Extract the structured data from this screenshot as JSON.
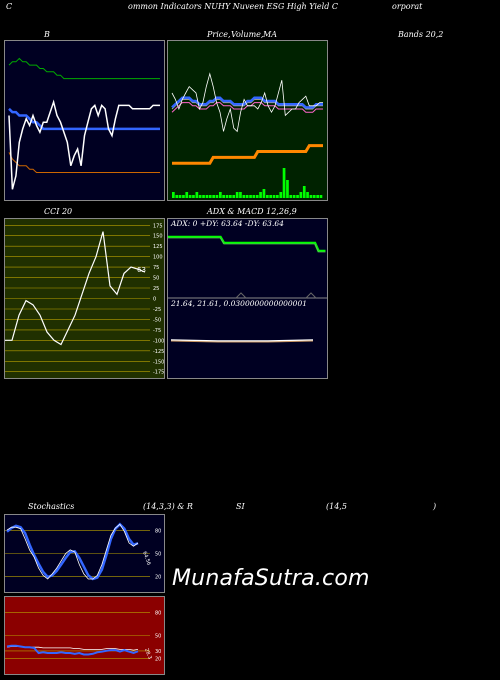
{
  "header": {
    "title_left": "C",
    "title_mid": "ommon Indicators NUHY Nuveen ESG High Yield C",
    "title_right": "orporat"
  },
  "labels": {
    "bollinger_left": "B",
    "bollinger_mid": "Price,",
    "bollinger_volume": "Volume,",
    "bollinger_mid2": "MA",
    "bollinger_right": "Bands 20,2",
    "cci": "CCI 20",
    "adx_title": "ADX  & MACD 12,26,9",
    "adx_values": "ADX: 0  +DY: 63.64  -DY: 63.64",
    "macd_values": "21.64,  21.61,  0.0300000000000001",
    "stoch": "Stochastics",
    "stoch_params": "(14,3,3) & R",
    "rsi": "SI",
    "rsi_params": "(14,5",
    "rsi_close": ")",
    "cci_last": "63",
    "stoch_last": "64.56",
    "rsi_last": "28.3"
  },
  "brand": "MunafaSutra.com",
  "colors": {
    "panel_dark": "#000022",
    "panel_green": "#002200",
    "panel_olive": "#203000",
    "panel_red": "#8b0000",
    "price": "#ffffff",
    "upper_band": "#00aa00",
    "lower_band": "#cc6600",
    "mid_band": "#3366ff",
    "volume": "#00ff00",
    "ema": "#ff8800"
  },
  "chart_data": [
    {
      "type": "line",
      "id": "bollinger",
      "x": [
        1,
        2,
        3,
        4,
        5,
        6,
        7,
        8,
        9,
        10,
        11,
        12,
        13,
        14,
        15,
        16,
        17,
        18,
        19,
        20,
        21,
        22,
        23,
        24,
        25,
        26,
        27,
        28,
        29,
        30,
        31,
        32,
        33,
        34,
        35,
        36,
        37,
        38,
        39,
        40,
        41,
        42,
        43,
        44,
        45,
        46,
        47,
        48,
        49,
        50,
        51,
        52,
        53,
        54,
        55,
        56,
        57,
        58,
        59,
        60,
        61,
        62,
        63,
        64,
        65,
        66,
        67,
        68,
        69,
        70,
        71,
        72,
        73,
        74,
        75,
        76,
        77,
        78,
        79,
        80
      ],
      "series": [
        {
          "values": [
            20.25,
            20.26,
            20.26,
            20.27,
            20.26,
            20.26,
            20.25,
            20.25,
            20.25,
            20.24,
            20.24,
            20.23,
            20.23,
            20.23,
            20.22,
            20.22,
            20.21,
            20.21,
            20.21,
            20.21,
            20.21,
            20.21,
            20.21,
            20.21,
            20.21,
            20.21,
            20.21,
            20.21,
            20.21,
            20.21,
            20.21,
            20.21,
            20.21,
            20.21,
            20.21,
            20.21,
            20.21,
            20.21,
            20.21,
            20.21,
            20.21,
            20.21,
            20.21,
            20.21,
            20.21,
            20.21,
            20.21,
            20.21,
            20.21,
            20.21,
            20.21,
            20.21,
            20.21,
            20.21,
            20.2,
            20.2,
            20.19,
            20.19,
            20.18,
            20.18,
            20.18,
            20.18,
            20.17,
            20.17,
            20.17,
            20.17,
            20.17,
            20.17,
            20.17,
            20.17,
            20.17,
            20.17,
            20.17,
            20.17,
            20.17,
            20.17,
            20.18,
            20.18,
            20.19,
            20.19
          ]
        },
        {
          "values": [
            20.12,
            20.11,
            20.11,
            20.1,
            20.1,
            20.1,
            20.09,
            20.08,
            20.08,
            20.07,
            20.06,
            20.06,
            20.06,
            20.06,
            20.06,
            20.06,
            20.06,
            20.06,
            20.06,
            20.06,
            20.06,
            20.06,
            20.06,
            20.06,
            20.06,
            20.06,
            20.06,
            20.06,
            20.06,
            20.06,
            20.06,
            20.06,
            20.06,
            20.06,
            20.06,
            20.06,
            20.06,
            20.06,
            20.06,
            20.06,
            20.06,
            20.06,
            20.06,
            20.06,
            20.06,
            20.06,
            20.06,
            20.06,
            20.06,
            20.06,
            20.06,
            20.06,
            20.06,
            20.06,
            20.06,
            20.06,
            20.06,
            20.06,
            20.06,
            20.06,
            20.06,
            20.06,
            20.06,
            20.06,
            20.06,
            20.06,
            20.06,
            20.06,
            20.06,
            20.06,
            20.06,
            20.06,
            20.06,
            20.06,
            20.06,
            20.06,
            20.05,
            20.05,
            20.04,
            20.04
          ]
        },
        {
          "values": [
            19.99,
            19.97,
            19.96,
            19.95,
            19.95,
            19.95,
            19.94,
            19.94,
            19.93,
            19.93,
            19.93,
            19.93,
            19.93,
            19.93,
            19.93,
            19.93,
            19.93,
            19.93,
            19.93,
            19.93,
            19.93,
            19.93,
            19.93,
            19.93,
            19.93,
            19.93,
            19.93,
            19.93,
            19.93,
            19.93,
            19.93,
            19.93,
            19.93,
            19.93,
            19.93,
            19.93,
            19.93,
            19.93,
            19.93,
            19.93,
            19.93,
            19.93,
            19.93,
            19.93,
            19.93,
            19.93,
            19.93,
            19.93,
            19.93,
            19.93,
            19.93,
            19.93,
            19.93,
            19.93,
            19.93,
            19.93,
            19.93,
            19.93,
            19.93,
            19.93,
            19.93,
            19.93,
            19.93,
            19.93,
            19.93,
            19.93,
            19.93,
            19.93,
            19.93,
            19.93,
            19.93,
            19.93,
            19.93,
            19.93,
            19.93,
            19.93,
            19.93,
            19.93,
            19.93,
            19.93
          ]
        },
        {
          "values": [
            20.1,
            19.88,
            19.92,
            20.02,
            20.06,
            20.09,
            20.07,
            20.1,
            20.07,
            20.05,
            20.08,
            20.08,
            20.11,
            20.14,
            20.1,
            20.08,
            20.05,
            20.02,
            19.95,
            19.98,
            20.0,
            19.95,
            20.04,
            20.08,
            20.12,
            20.13,
            20.1,
            20.13,
            20.12,
            20.06,
            20.04,
            20.09,
            20.13,
            20.13,
            20.13,
            20.13,
            20.12,
            20.12,
            20.12,
            20.12,
            20.12,
            20.12,
            20.13,
            20.13,
            20.13,
            20.13,
            20.13,
            20.13,
            20.13,
            20.13,
            20.13,
            20.13,
            20.13,
            20.13,
            20.13,
            20.13,
            20.13,
            20.13,
            20.13,
            20.13,
            20.13,
            20.13,
            20.13,
            20.13,
            20.13,
            20.13,
            20.13,
            20.13,
            20.13,
            20.13,
            20.13,
            20.13,
            20.13,
            20.13,
            20.13,
            20.13,
            20.13,
            20.13,
            20.13,
            20.13
          ]
        }
      ]
    },
    {
      "type": "line",
      "id": "price_volume",
      "series": [
        {
          "values": [
            20.05,
            20.06,
            20.07,
            20.08,
            20.08,
            20.08,
            20.07,
            20.07,
            20.06,
            20.06,
            20.06,
            20.07,
            20.07,
            20.08,
            20.08,
            20.07,
            20.07,
            20.07,
            20.06,
            20.06,
            20.06,
            20.06,
            20.07,
            20.07,
            20.08,
            20.08,
            20.08,
            20.07,
            20.07,
            20.07,
            20.07,
            20.06,
            20.06,
            20.06,
            20.06,
            20.06,
            20.06,
            20.06,
            20.06,
            20.05,
            20.05,
            20.05,
            20.06,
            20.06,
            20.06
          ]
        },
        {
          "values": [
            20.1,
            20.08,
            20.05,
            20.08,
            20.1,
            20.12,
            20.11,
            20.1,
            20.05,
            20.07,
            20.12,
            20.16,
            20.12,
            20.07,
            20.04,
            19.98,
            20.02,
            20.05,
            19.99,
            19.98,
            20.04,
            20.08,
            20.06,
            20.06,
            20.06,
            20.05,
            20.07,
            20.1,
            20.06,
            20.04,
            20.06,
            20.1,
            20.14,
            20.03,
            20.04,
            20.05,
            20.05,
            20.07,
            20.08,
            20.09,
            20.06,
            20.06,
            20.06,
            20.07,
            20.07
          ]
        }
      ],
      "volume": [
        2,
        1,
        1,
        1,
        2,
        1,
        1,
        2,
        1,
        1,
        1,
        1,
        1,
        1,
        2,
        1,
        1,
        1,
        1,
        2,
        2,
        1,
        1,
        1,
        1,
        1,
        2,
        3,
        1,
        1,
        1,
        1,
        2,
        10,
        6,
        1,
        1,
        1,
        2,
        4,
        2,
        1,
        1,
        1,
        1
      ]
    },
    {
      "type": "line",
      "id": "cci",
      "ylim": [
        -175,
        175
      ],
      "yticks": [
        175,
        150,
        125,
        100,
        75,
        50,
        25,
        0,
        -25,
        -50,
        -75,
        -100,
        -125,
        -150,
        -175
      ],
      "series": [
        {
          "values": [
            -100,
            -100,
            -40,
            -5,
            -15,
            -40,
            -80,
            -100,
            -110,
            -75,
            -40,
            10,
            60,
            100,
            160,
            30,
            10,
            60,
            75,
            70,
            63
          ]
        }
      ]
    },
    {
      "type": "line",
      "id": "stochastics",
      "yticks": [
        80,
        50,
        20
      ],
      "series": [
        {
          "values": [
            82,
            86,
            86,
            84,
            70,
            55,
            45,
            30,
            20,
            15,
            22,
            30,
            40,
            50,
            55,
            52,
            35,
            22,
            15,
            15,
            20,
            35,
            55,
            75,
            85,
            90,
            80,
            64.56,
            60,
            64.56
          ]
        },
        {
          "values": [
            80,
            85,
            88,
            86,
            78,
            62,
            48,
            36,
            25,
            18,
            20,
            26,
            35,
            44,
            52,
            53,
            44,
            32,
            20,
            15,
            17,
            28,
            48,
            70,
            84,
            90,
            84,
            70,
            62,
            64
          ]
        }
      ]
    },
    {
      "type": "line",
      "id": "rsi",
      "yticks": [
        80,
        50,
        30,
        20
      ],
      "series": [
        {
          "values": [
            34,
            35,
            35,
            35,
            34,
            34,
            34,
            34,
            33,
            33,
            33,
            33,
            33,
            33,
            33,
            32,
            32,
            31,
            31,
            31,
            31,
            31,
            32,
            32,
            32,
            31,
            31,
            31,
            30,
            31
          ]
        },
        {
          "values": [
            35,
            36,
            36,
            35,
            34,
            34,
            33,
            26,
            27,
            26,
            26,
            26,
            27,
            26,
            26,
            25,
            26,
            24,
            24,
            25,
            27,
            28,
            29,
            30,
            30,
            28,
            30,
            28,
            26,
            28.3
          ]
        }
      ]
    }
  ]
}
